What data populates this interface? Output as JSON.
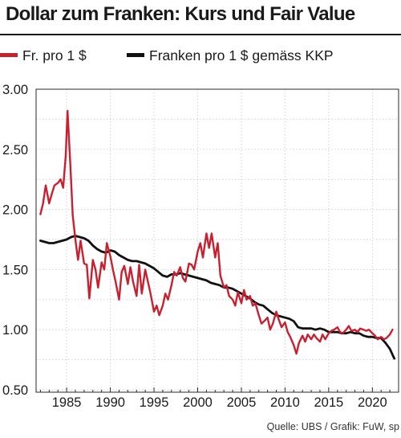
{
  "chart_data": {
    "type": "line",
    "title": "Dollar zum Franken: Kurs und Fair Value",
    "subtitle": "",
    "xlabel": "",
    "ylabel": "",
    "xlim": [
      1981.5,
      2023
    ],
    "ylim": [
      0.5,
      3.0
    ],
    "xticks": [
      1985,
      1990,
      1995,
      2000,
      2005,
      2010,
      2015,
      2020
    ],
    "yticks": [
      3.0,
      2.5,
      2.0,
      1.5,
      1.0,
      0.5
    ],
    "ytick_labels": [
      "3.00",
      "2.50",
      "2.00",
      "1.50",
      "1.00",
      "0.50"
    ],
    "grid": true,
    "legend_position": "top",
    "series": [
      {
        "name": "Fr. pro 1 $",
        "color": "#c8202f",
        "x": [
          1982.0,
          1982.3,
          1982.6,
          1983.0,
          1983.3,
          1983.6,
          1984.0,
          1984.3,
          1984.6,
          1984.9,
          1985.1,
          1985.4,
          1985.7,
          1986.0,
          1986.3,
          1986.6,
          1987.0,
          1987.3,
          1987.6,
          1988.0,
          1988.3,
          1988.6,
          1989.0,
          1989.3,
          1989.6,
          1990.0,
          1990.3,
          1990.6,
          1991.0,
          1991.3,
          1991.6,
          1992.0,
          1992.3,
          1992.6,
          1993.0,
          1993.3,
          1993.6,
          1994.0,
          1994.3,
          1994.6,
          1995.0,
          1995.3,
          1995.6,
          1996.0,
          1996.3,
          1996.6,
          1997.0,
          1997.3,
          1997.6,
          1998.0,
          1998.3,
          1998.6,
          1999.0,
          1999.3,
          1999.6,
          2000.0,
          2000.3,
          2000.6,
          2001.0,
          2001.3,
          2001.6,
          2002.0,
          2002.3,
          2002.6,
          2003.0,
          2003.3,
          2003.6,
          2004.0,
          2004.3,
          2004.6,
          2005.0,
          2005.3,
          2005.6,
          2006.0,
          2006.3,
          2006.6,
          2007.0,
          2007.3,
          2007.6,
          2008.0,
          2008.3,
          2008.6,
          2009.0,
          2009.3,
          2009.6,
          2010.0,
          2010.3,
          2010.6,
          2011.0,
          2011.3,
          2011.6,
          2012.0,
          2012.3,
          2012.6,
          2013.0,
          2013.3,
          2013.6,
          2014.0,
          2014.3,
          2014.6,
          2015.0,
          2015.3,
          2015.6,
          2016.0,
          2016.3,
          2016.6,
          2017.0,
          2017.3,
          2017.6,
          2018.0,
          2018.3,
          2018.6,
          2019.0,
          2019.3,
          2019.6,
          2020.0,
          2020.3,
          2020.6,
          2021.0,
          2021.3,
          2021.6,
          2022.0,
          2022.3
        ],
        "y": [
          1.96,
          2.05,
          2.2,
          2.05,
          2.13,
          2.2,
          2.22,
          2.25,
          2.18,
          2.45,
          2.82,
          2.4,
          1.95,
          1.75,
          1.58,
          1.74,
          1.55,
          1.54,
          1.26,
          1.58,
          1.5,
          1.35,
          1.56,
          1.5,
          1.72,
          1.61,
          1.5,
          1.4,
          1.25,
          1.48,
          1.53,
          1.38,
          1.52,
          1.4,
          1.28,
          1.54,
          1.3,
          1.5,
          1.4,
          1.3,
          1.15,
          1.2,
          1.12,
          1.2,
          1.3,
          1.25,
          1.37,
          1.48,
          1.45,
          1.52,
          1.43,
          1.4,
          1.55,
          1.54,
          1.5,
          1.65,
          1.72,
          1.6,
          1.8,
          1.68,
          1.8,
          1.6,
          1.72,
          1.45,
          1.35,
          1.37,
          1.28,
          1.25,
          1.2,
          1.31,
          1.22,
          1.33,
          1.25,
          1.28,
          1.2,
          1.22,
          1.12,
          1.05,
          1.07,
          1.1,
          1.0,
          1.05,
          1.15,
          1.08,
          1.02,
          1.06,
          0.98,
          0.94,
          0.87,
          0.8,
          0.89,
          0.95,
          0.9,
          0.96,
          0.92,
          0.96,
          0.93,
          0.9,
          0.96,
          0.92,
          0.97,
          0.99,
          1.0,
          1.02,
          0.98,
          0.97,
          1.0,
          1.03,
          0.99,
          1.0,
          0.98,
          1.01,
          1.0,
          0.99,
          1.0,
          0.97,
          0.95,
          0.92,
          0.94,
          0.92,
          0.93,
          0.96,
          1.0
        ]
      },
      {
        "name": "Franken pro 1 $ gemäss KKP",
        "color": "#111111",
        "x": [
          1982.0,
          1982.5,
          1983.0,
          1983.5,
          1984.0,
          1984.5,
          1985.0,
          1985.5,
          1986.0,
          1986.5,
          1987.0,
          1987.5,
          1988.0,
          1988.5,
          1989.0,
          1989.5,
          1990.0,
          1990.5,
          1991.0,
          1991.5,
          1992.0,
          1992.5,
          1993.0,
          1993.5,
          1994.0,
          1994.5,
          1995.0,
          1995.5,
          1996.0,
          1996.5,
          1997.0,
          1997.5,
          1998.0,
          1998.5,
          1999.0,
          1999.5,
          2000.0,
          2000.5,
          2001.0,
          2001.5,
          2002.0,
          2002.5,
          2003.0,
          2003.5,
          2004.0,
          2004.5,
          2005.0,
          2005.5,
          2006.0,
          2006.5,
          2007.0,
          2007.5,
          2008.0,
          2008.5,
          2009.0,
          2009.5,
          2010.0,
          2010.5,
          2011.0,
          2011.5,
          2012.0,
          2012.5,
          2013.0,
          2013.5,
          2014.0,
          2014.5,
          2015.0,
          2015.5,
          2016.0,
          2016.5,
          2017.0,
          2017.5,
          2018.0,
          2018.5,
          2019.0,
          2019.5,
          2020.0,
          2020.5,
          2021.0,
          2021.5,
          2022.0,
          2022.5
        ],
        "y": [
          1.74,
          1.73,
          1.72,
          1.72,
          1.73,
          1.74,
          1.75,
          1.77,
          1.78,
          1.77,
          1.76,
          1.74,
          1.7,
          1.67,
          1.65,
          1.64,
          1.66,
          1.65,
          1.62,
          1.6,
          1.58,
          1.57,
          1.57,
          1.56,
          1.55,
          1.53,
          1.51,
          1.48,
          1.45,
          1.44,
          1.46,
          1.46,
          1.47,
          1.46,
          1.45,
          1.44,
          1.43,
          1.42,
          1.41,
          1.39,
          1.38,
          1.37,
          1.35,
          1.35,
          1.34,
          1.32,
          1.3,
          1.28,
          1.26,
          1.23,
          1.21,
          1.2,
          1.17,
          1.14,
          1.12,
          1.11,
          1.1,
          1.09,
          1.07,
          1.02,
          1.01,
          1.01,
          1.01,
          1.0,
          1.01,
          1.0,
          0.98,
          0.98,
          0.98,
          0.97,
          0.97,
          0.98,
          0.97,
          0.97,
          0.95,
          0.94,
          0.94,
          0.93,
          0.93,
          0.89,
          0.84,
          0.76
        ]
      }
    ]
  },
  "source": "Quelle: UBS / Grafik: FuW, sp"
}
